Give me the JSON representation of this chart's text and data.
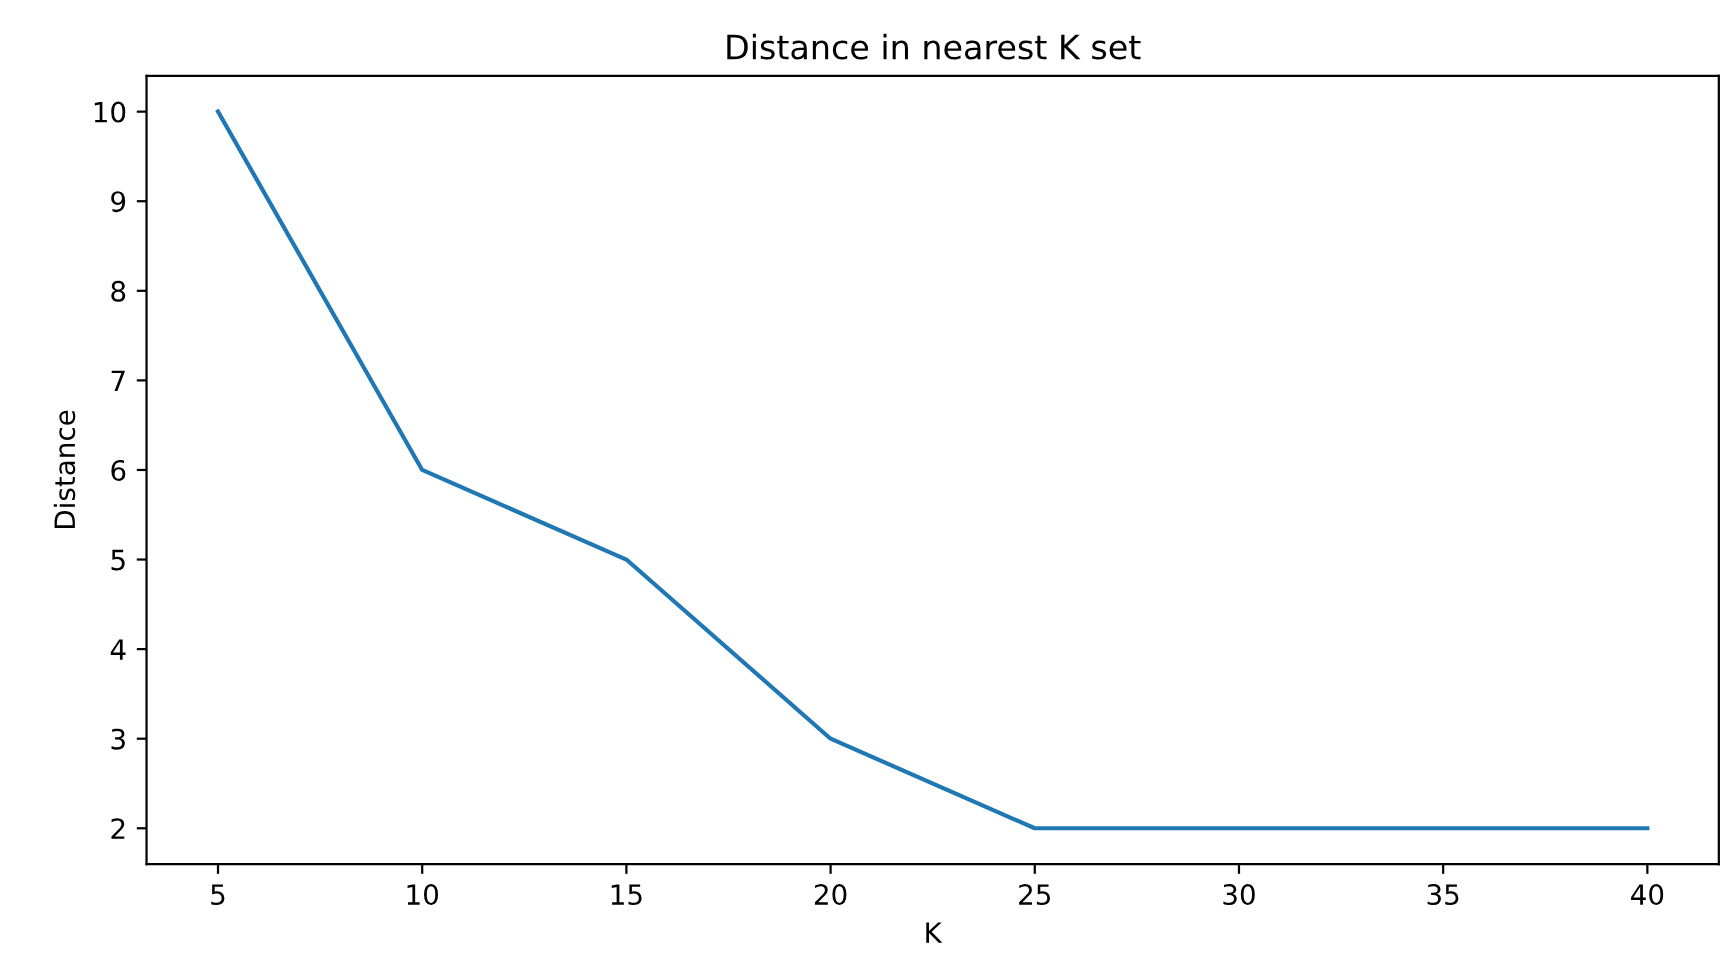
{
  "chart_data": {
    "type": "line",
    "title": "Distance in nearest K set",
    "xlabel": "K",
    "ylabel": "Distance",
    "x": [
      5,
      10,
      15,
      20,
      25,
      30,
      35,
      40
    ],
    "series": [
      {
        "color": "#1f77b4",
        "values": [
          10,
          6,
          5,
          3,
          2,
          2,
          2,
          2
        ]
      }
    ],
    "xlim": [
      3.25,
      41.75
    ],
    "xticks": [
      5,
      10,
      15,
      20,
      25,
      30,
      35,
      40
    ],
    "ylim": [
      1.6,
      10.4
    ],
    "yticks": [
      2,
      3,
      4,
      5,
      6,
      7,
      8,
      9,
      10
    ],
    "grid": false,
    "marker": "none",
    "line_style": "solid"
  }
}
